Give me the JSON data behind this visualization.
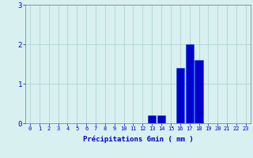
{
  "xlabel": "Précipitations 6min ( mm )",
  "categories": [
    0,
    1,
    2,
    3,
    4,
    5,
    6,
    7,
    8,
    9,
    10,
    11,
    12,
    13,
    14,
    15,
    16,
    17,
    18,
    19,
    20,
    21,
    22,
    23
  ],
  "values": [
    0,
    0,
    0,
    0,
    0,
    0,
    0,
    0,
    0,
    0,
    0,
    0,
    0,
    0.2,
    0.2,
    0,
    1.4,
    2.0,
    1.6,
    0,
    0,
    0,
    0,
    0
  ],
  "bar_color": "#0000cc",
  "bar_edge_color": "#0044ee",
  "background_color": "#d8f0f0",
  "grid_color": "#b0d4d4",
  "axis_color": "#888888",
  "text_color": "#0000cc",
  "ylim": [
    0,
    3
  ],
  "yticks": [
    0,
    1,
    2,
    3
  ],
  "xlim": [
    -0.5,
    23.5
  ],
  "xtick_fontsize": 5.0,
  "ytick_fontsize": 6.5,
  "xlabel_fontsize": 6.5,
  "bar_width": 0.85
}
